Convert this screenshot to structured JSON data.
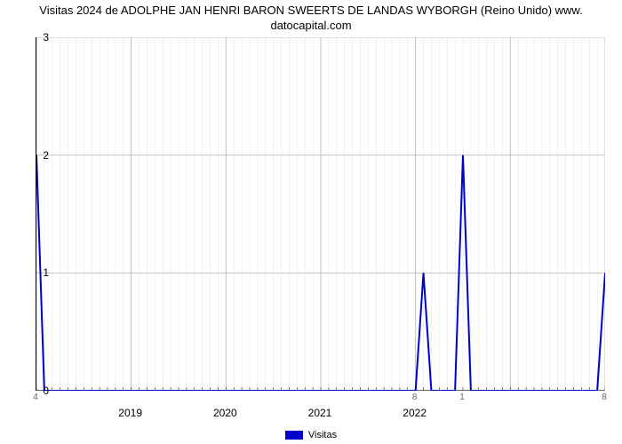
{
  "chart": {
    "type": "line",
    "title_line1": "Visitas 2024 de ADOLPHE JAN HENRI BARON SWEERTS DE LANDAS WYBORGH (Reino Unido) www.",
    "title_line2": "datocapital.com",
    "title_fontsize": 13,
    "background_color": "#ffffff",
    "plot_border_color": "#000000",
    "grid_color_major": "#c0c0c0",
    "grid_color_minor": "#e0e0e0",
    "line_color": "#0000cc",
    "line_width": 2,
    "ylim": [
      0,
      3
    ],
    "ytick_step": 1,
    "y_tick_labels": [
      "0",
      "1",
      "2",
      "3"
    ],
    "num_points": 73,
    "data_points": [
      2,
      0,
      0,
      0,
      0,
      0,
      0,
      0,
      0,
      0,
      0,
      0,
      0,
      0,
      0,
      0,
      0,
      0,
      0,
      0,
      0,
      0,
      0,
      0,
      0,
      0,
      0,
      0,
      0,
      0,
      0,
      0,
      0,
      0,
      0,
      0,
      0,
      0,
      0,
      0,
      0,
      0,
      0,
      0,
      0,
      0,
      0,
      0,
      0,
      1,
      0,
      0,
      0,
      0,
      2,
      0,
      0,
      0,
      0,
      0,
      0,
      0,
      0,
      0,
      0,
      0,
      0,
      0,
      0,
      0,
      0,
      0,
      1
    ],
    "point_labels": {
      "0": "4",
      "48": "8",
      "54": "1",
      "72": "8"
    },
    "x_minor_step": 1,
    "x_major_positions": [
      0,
      12,
      24,
      36,
      48,
      60,
      72
    ],
    "x_year_ticks": [
      {
        "pos": 12,
        "label": "2019"
      },
      {
        "pos": 24,
        "label": "2020"
      },
      {
        "pos": 36,
        "label": "2021"
      },
      {
        "pos": 48,
        "label": "2022"
      }
    ],
    "legend_label": "Visitas",
    "legend_fontsize": 11,
    "label_color": "#000000"
  }
}
